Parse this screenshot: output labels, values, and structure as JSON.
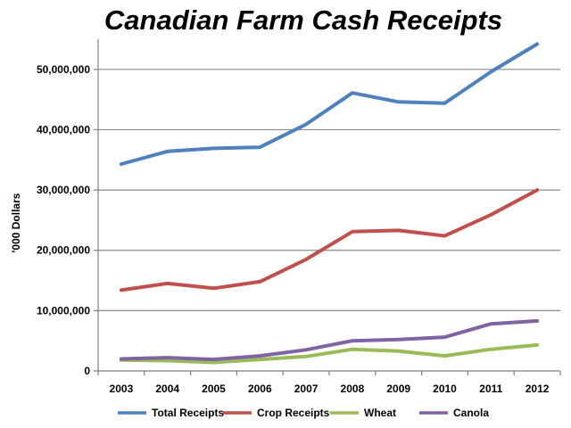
{
  "chart_data": {
    "type": "line",
    "title": "Canadian Farm Cash Receipts",
    "ylabel": "'000 Dollars",
    "xlabel": "",
    "categories": [
      "2003",
      "2004",
      "2005",
      "2006",
      "2007",
      "2008",
      "2009",
      "2010",
      "2011",
      "2012"
    ],
    "ylim": [
      0,
      55000000
    ],
    "yticks": [
      0,
      10000000,
      20000000,
      30000000,
      40000000,
      50000000
    ],
    "ytick_labels": [
      "0",
      "10,000,000",
      "20,000,000",
      "30,000,000",
      "40,000,000",
      "50,000,000"
    ],
    "grid": true,
    "legend_position": "bottom",
    "series": [
      {
        "name": "Total Receipts",
        "color": "#4f81bd",
        "values": [
          34300000,
          36400000,
          36900000,
          37100000,
          40900000,
          46100000,
          44600000,
          44400000,
          49600000,
          54200000
        ]
      },
      {
        "name": "Crop Receipts",
        "color": "#c0504d",
        "values": [
          13400000,
          14500000,
          13700000,
          14800000,
          18500000,
          23100000,
          23300000,
          22400000,
          25900000,
          30000000
        ]
      },
      {
        "name": "Wheat",
        "color": "#9bbb59",
        "values": [
          1800000,
          1700000,
          1400000,
          1900000,
          2400000,
          3600000,
          3300000,
          2500000,
          3600000,
          4300000
        ]
      },
      {
        "name": "Canola",
        "color": "#8064a2",
        "values": [
          2000000,
          2200000,
          1900000,
          2500000,
          3500000,
          5000000,
          5200000,
          5600000,
          7800000,
          8300000
        ]
      }
    ]
  }
}
